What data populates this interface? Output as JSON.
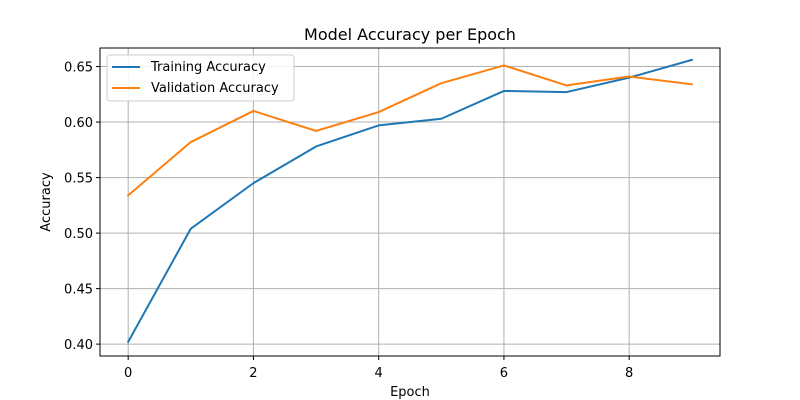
{
  "chart_data": {
    "type": "line",
    "title": "Model Accuracy per Epoch",
    "xlabel": "Epoch",
    "ylabel": "Accuracy",
    "x": [
      0,
      1,
      2,
      3,
      4,
      5,
      6,
      7,
      8,
      9
    ],
    "series": [
      {
        "name": "Training Accuracy",
        "color": "#1f77b4",
        "values": [
          0.402,
          0.504,
          0.545,
          0.578,
          0.597,
          0.603,
          0.628,
          0.627,
          0.64,
          0.656
        ]
      },
      {
        "name": "Validation Accuracy",
        "color": "#ff7f0e",
        "values": [
          0.534,
          0.582,
          0.61,
          0.592,
          0.609,
          0.635,
          0.651,
          0.633,
          0.641,
          0.634
        ]
      }
    ],
    "xlim": [
      -0.45,
      9.45
    ],
    "ylim": [
      0.3893,
      0.6667
    ],
    "xticks": [
      0,
      2,
      4,
      6,
      8
    ],
    "xtick_labels": [
      "0",
      "2",
      "4",
      "6",
      "8"
    ],
    "yticks": [
      0.4,
      0.45,
      0.5,
      0.55,
      0.6,
      0.65
    ],
    "ytick_labels": [
      "0.40",
      "0.45",
      "0.50",
      "0.55",
      "0.60",
      "0.65"
    ],
    "grid": true,
    "legend_position": "top-left"
  }
}
